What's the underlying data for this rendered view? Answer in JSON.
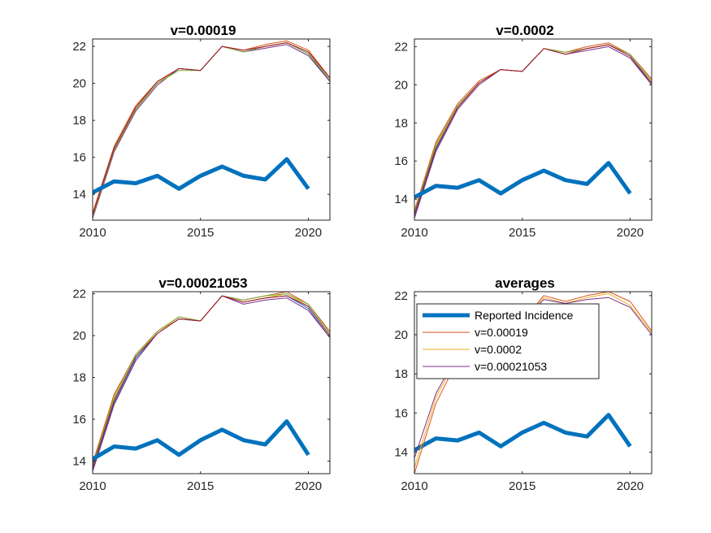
{
  "chart_data": [
    {
      "type": "line",
      "title": "v=0.00019",
      "xlim": [
        2010,
        2021
      ],
      "ylim": [
        12.6,
        22.4
      ],
      "xticks": [
        2010,
        2015,
        2020
      ],
      "yticks": [
        14,
        16,
        18,
        20,
        22
      ],
      "grid": false,
      "series": [
        {
          "color": "#0072BD",
          "width": 1,
          "x": [
            2010,
            2011,
            2012,
            2013,
            2014,
            2015,
            2016,
            2017,
            2018,
            2019,
            2020,
            2021
          ],
          "y": [
            12.8,
            16.4,
            18.6,
            20.0,
            20.8,
            20.7,
            22.0,
            21.7,
            22.0,
            22.2,
            21.6,
            20.1
          ]
        },
        {
          "color": "#D95319",
          "width": 1,
          "x": [
            2010,
            2011,
            2012,
            2013,
            2014,
            2015,
            2016,
            2017,
            2018,
            2019,
            2020,
            2021
          ],
          "y": [
            13.0,
            16.6,
            18.8,
            20.1,
            20.8,
            20.7,
            22.0,
            21.8,
            22.1,
            22.3,
            21.8,
            20.3
          ]
        },
        {
          "color": "#EDB120",
          "width": 1,
          "x": [
            2010,
            2011,
            2012,
            2013,
            2014,
            2015,
            2016,
            2017,
            2018,
            2019,
            2020,
            2021
          ],
          "y": [
            12.9,
            16.5,
            18.7,
            20.0,
            20.8,
            20.7,
            22.0,
            21.7,
            22.0,
            22.2,
            21.7,
            20.2
          ]
        },
        {
          "color": "#7E2F8E",
          "width": 1,
          "x": [
            2010,
            2011,
            2012,
            2013,
            2014,
            2015,
            2016,
            2017,
            2018,
            2019,
            2020,
            2021
          ],
          "y": [
            12.7,
            16.3,
            18.5,
            19.9,
            20.8,
            20.7,
            22.0,
            21.7,
            21.9,
            22.1,
            21.5,
            20.1
          ]
        },
        {
          "color": "#77AC30",
          "width": 1,
          "x": [
            2010,
            2011,
            2012,
            2013,
            2014,
            2015,
            2016,
            2017,
            2018,
            2019,
            2020,
            2021
          ],
          "y": [
            12.8,
            16.4,
            18.6,
            20.0,
            20.7,
            20.7,
            22.0,
            21.7,
            22.0,
            22.2,
            21.6,
            20.2
          ]
        },
        {
          "color": "#A2142F",
          "width": 1,
          "x": [
            2010,
            2011,
            2012,
            2013,
            2014,
            2015,
            2016,
            2017,
            2018,
            2019,
            2020,
            2021
          ],
          "y": [
            12.9,
            16.5,
            18.7,
            20.1,
            20.8,
            20.7,
            22.0,
            21.8,
            22.0,
            22.2,
            21.7,
            20.3
          ]
        },
        {
          "color": "#0072BD",
          "width": 5,
          "x": [
            2010,
            2011,
            2012,
            2013,
            2014,
            2015,
            2016,
            2017,
            2018,
            2019,
            2020
          ],
          "y": [
            14.1,
            14.7,
            14.6,
            15.0,
            14.3,
            15.0,
            15.5,
            15.0,
            14.8,
            15.9,
            14.3
          ]
        }
      ]
    },
    {
      "type": "line",
      "title": "v=0.0002",
      "xlim": [
        2010,
        2021
      ],
      "ylim": [
        12.9,
        22.4
      ],
      "xticks": [
        2010,
        2015,
        2020
      ],
      "yticks": [
        14,
        16,
        18,
        20,
        22
      ],
      "grid": false,
      "series": [
        {
          "color": "#0072BD",
          "width": 1,
          "x": [
            2010,
            2011,
            2012,
            2013,
            2014,
            2015,
            2016,
            2017,
            2018,
            2019,
            2020,
            2021
          ],
          "y": [
            13.1,
            16.6,
            18.8,
            20.1,
            20.8,
            20.7,
            21.9,
            21.6,
            21.9,
            22.1,
            21.5,
            20.0
          ]
        },
        {
          "color": "#D95319",
          "width": 1,
          "x": [
            2010,
            2011,
            2012,
            2013,
            2014,
            2015,
            2016,
            2017,
            2018,
            2019,
            2020,
            2021
          ],
          "y": [
            13.4,
            17.0,
            19.0,
            20.2,
            20.8,
            20.7,
            21.9,
            21.7,
            22.0,
            22.2,
            21.6,
            20.3
          ]
        },
        {
          "color": "#EDB120",
          "width": 1,
          "x": [
            2010,
            2011,
            2012,
            2013,
            2014,
            2015,
            2016,
            2017,
            2018,
            2019,
            2020,
            2021
          ],
          "y": [
            13.2,
            16.8,
            18.9,
            20.1,
            20.8,
            20.7,
            21.9,
            21.6,
            21.9,
            22.1,
            21.5,
            20.1
          ]
        },
        {
          "color": "#7E2F8E",
          "width": 1,
          "x": [
            2010,
            2011,
            2012,
            2013,
            2014,
            2015,
            2016,
            2017,
            2018,
            2019,
            2020,
            2021
          ],
          "y": [
            13.0,
            16.5,
            18.7,
            20.0,
            20.8,
            20.7,
            21.9,
            21.6,
            21.8,
            22.0,
            21.4,
            20.0
          ]
        },
        {
          "color": "#77AC30",
          "width": 1,
          "x": [
            2010,
            2011,
            2012,
            2013,
            2014,
            2015,
            2016,
            2017,
            2018,
            2019,
            2020,
            2021
          ],
          "y": [
            13.3,
            16.9,
            18.9,
            20.1,
            20.8,
            20.7,
            21.9,
            21.7,
            21.9,
            22.1,
            21.6,
            20.2
          ]
        },
        {
          "color": "#A2142F",
          "width": 1,
          "x": [
            2010,
            2011,
            2012,
            2013,
            2014,
            2015,
            2016,
            2017,
            2018,
            2019,
            2020,
            2021
          ],
          "y": [
            13.2,
            16.7,
            18.8,
            20.1,
            20.8,
            20.7,
            21.9,
            21.6,
            21.9,
            22.1,
            21.5,
            20.1
          ]
        },
        {
          "color": "#0072BD",
          "width": 5,
          "x": [
            2010,
            2011,
            2012,
            2013,
            2014,
            2015,
            2016,
            2017,
            2018,
            2019,
            2020
          ],
          "y": [
            14.1,
            14.7,
            14.6,
            15.0,
            14.3,
            15.0,
            15.5,
            15.0,
            14.8,
            15.9,
            14.3
          ]
        }
      ]
    },
    {
      "type": "line",
      "title": "v=0.00021053",
      "xlim": [
        2010,
        2021
      ],
      "ylim": [
        13.4,
        22.1
      ],
      "xticks": [
        2010,
        2015,
        2020
      ],
      "yticks": [
        14,
        16,
        18,
        20,
        22
      ],
      "grid": false,
      "series": [
        {
          "color": "#0072BD",
          "width": 1,
          "x": [
            2010,
            2011,
            2012,
            2013,
            2014,
            2015,
            2016,
            2017,
            2018,
            2019,
            2020,
            2021
          ],
          "y": [
            13.6,
            16.8,
            18.9,
            20.1,
            20.8,
            20.7,
            21.9,
            21.6,
            21.8,
            21.9,
            21.3,
            19.9
          ]
        },
        {
          "color": "#D95319",
          "width": 1,
          "x": [
            2010,
            2011,
            2012,
            2013,
            2014,
            2015,
            2016,
            2017,
            2018,
            2019,
            2020,
            2021
          ],
          "y": [
            13.9,
            17.2,
            19.1,
            20.2,
            20.9,
            20.7,
            21.9,
            21.7,
            21.9,
            22.1,
            21.5,
            20.2
          ]
        },
        {
          "color": "#EDB120",
          "width": 1,
          "x": [
            2010,
            2011,
            2012,
            2013,
            2014,
            2015,
            2016,
            2017,
            2018,
            2019,
            2020,
            2021
          ],
          "y": [
            13.7,
            17.0,
            19.0,
            20.2,
            20.8,
            20.7,
            21.9,
            21.6,
            21.8,
            22.0,
            21.4,
            20.0
          ]
        },
        {
          "color": "#7E2F8E",
          "width": 1,
          "x": [
            2010,
            2011,
            2012,
            2013,
            2014,
            2015,
            2016,
            2017,
            2018,
            2019,
            2020,
            2021
          ],
          "y": [
            13.5,
            16.7,
            18.8,
            20.1,
            20.8,
            20.7,
            21.9,
            21.5,
            21.7,
            21.8,
            21.2,
            19.9
          ]
        },
        {
          "color": "#77AC30",
          "width": 1,
          "x": [
            2010,
            2011,
            2012,
            2013,
            2014,
            2015,
            2016,
            2017,
            2018,
            2019,
            2020,
            2021
          ],
          "y": [
            13.8,
            17.1,
            19.1,
            20.2,
            20.9,
            20.7,
            21.9,
            21.7,
            21.9,
            22.0,
            21.5,
            20.1
          ]
        },
        {
          "color": "#A2142F",
          "width": 1,
          "x": [
            2010,
            2011,
            2012,
            2013,
            2014,
            2015,
            2016,
            2017,
            2018,
            2019,
            2020,
            2021
          ],
          "y": [
            13.7,
            16.9,
            19.0,
            20.1,
            20.8,
            20.7,
            21.9,
            21.6,
            21.8,
            21.9,
            21.4,
            20.0
          ]
        },
        {
          "color": "#0072BD",
          "width": 5,
          "x": [
            2010,
            2011,
            2012,
            2013,
            2014,
            2015,
            2016,
            2017,
            2018,
            2019,
            2020
          ],
          "y": [
            14.1,
            14.7,
            14.6,
            15.0,
            14.3,
            15.0,
            15.5,
            15.0,
            14.8,
            15.9,
            14.3
          ]
        }
      ]
    },
    {
      "type": "line",
      "title": "averages",
      "xlim": [
        2010,
        2021
      ],
      "ylim": [
        12.9,
        22.2
      ],
      "xticks": [
        2010,
        2015,
        2020
      ],
      "yticks": [
        14,
        16,
        18,
        20,
        22
      ],
      "grid": false,
      "legend": {
        "location": "top-left",
        "entries": [
          "Reported Incidence",
          "v=0.00019",
          "v=0.0002",
          "v=0.00021053"
        ]
      },
      "series": [
        {
          "name": "Reported Incidence",
          "color": "#0072BD",
          "width": 5,
          "x": [
            2010,
            2011,
            2012,
            2013,
            2014,
            2015,
            2016,
            2017,
            2018,
            2019,
            2020
          ],
          "y": [
            14.1,
            14.7,
            14.6,
            15.0,
            14.3,
            15.0,
            15.5,
            15.0,
            14.8,
            15.9,
            14.3
          ]
        },
        {
          "name": "v=0.00019",
          "color": "#D95319",
          "width": 1,
          "x": [
            2010,
            2011,
            2012,
            2013,
            2014,
            2015,
            2016,
            2017,
            2018,
            2019,
            2020,
            2021
          ],
          "y": [
            12.9,
            16.5,
            18.7,
            20.0,
            20.8,
            20.7,
            22.0,
            21.7,
            22.0,
            22.2,
            21.7,
            20.2
          ]
        },
        {
          "name": "v=0.0002",
          "color": "#EDB120",
          "width": 1,
          "x": [
            2010,
            2011,
            2012,
            2013,
            2014,
            2015,
            2016,
            2017,
            2018,
            2019,
            2020,
            2021
          ],
          "y": [
            13.2,
            16.8,
            18.9,
            20.1,
            20.8,
            20.7,
            21.9,
            21.6,
            21.9,
            22.1,
            21.5,
            20.1
          ]
        },
        {
          "name": "v=0.00021053",
          "color": "#7E2F8E",
          "width": 1,
          "x": [
            2010,
            2011,
            2012,
            2013,
            2014,
            2015,
            2016,
            2017,
            2018,
            2019,
            2020,
            2021
          ],
          "y": [
            13.7,
            17.0,
            19.0,
            20.1,
            20.8,
            20.7,
            21.8,
            21.6,
            21.8,
            21.9,
            21.4,
            20.0
          ]
        }
      ]
    }
  ]
}
